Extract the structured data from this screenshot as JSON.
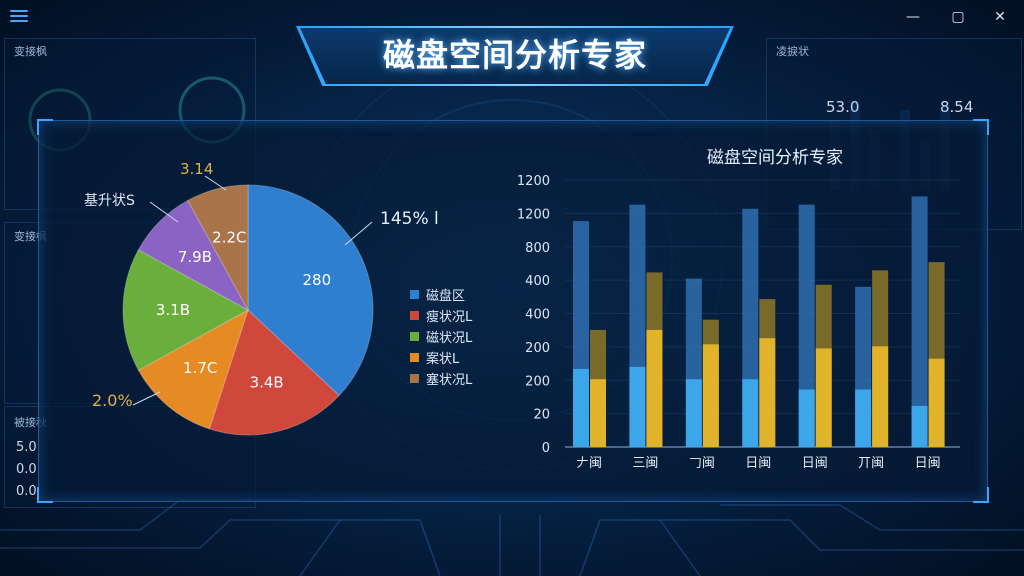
{
  "window": {
    "title": "磁盘空间分析专家",
    "minimize_glyph": "—",
    "maximize_glyph": "▢",
    "close_glyph": "✕"
  },
  "background_panels": {
    "left_top_label": "变接枫",
    "left_mid_label": "变接枫",
    "left_bot_label": "被接秋",
    "right_top_label": "凌捩状",
    "right_values": [
      "53.0",
      "8.54"
    ],
    "left_values": [
      "5.0",
      "0.0",
      "0.0"
    ]
  },
  "pie_chart": {
    "callouts": {
      "top": "3.14",
      "left": "基升状S",
      "right": "145% l",
      "bottom_left": "2.0%"
    },
    "slice_labels": [
      "280",
      "3.4B",
      "1.7C",
      "3.1B",
      "7.9B",
      "2.2C"
    ],
    "legend": [
      "磁盘区",
      "瘦状况L",
      "磁状况L",
      "案状L",
      "塞状况L"
    ]
  },
  "bar_chart_title": "磁盘空间分析专家",
  "colors": {
    "accent": "#3aa4ff",
    "pie": [
      "#2f7fd0",
      "#d0473c",
      "#e68a24",
      "#6aae3c",
      "#8a63c4",
      "#a9744a"
    ],
    "bar_blue": "#2f6fb0",
    "bar_blue_light": "#3ca6ea",
    "bar_gold": "#e0b32a",
    "bar_gold_dark": "#7a6a2a"
  },
  "chart_data": [
    {
      "type": "pie",
      "values": [
        37,
        18,
        12,
        16,
        9,
        8
      ],
      "labels": [
        "280",
        "3.4B",
        "1.7C",
        "3.1B",
        "7.9B",
        "2.2C"
      ],
      "legend": [
        "磁盘区",
        "瘦状况L",
        "磁状况L",
        "案状L",
        "塞状况L"
      ]
    },
    {
      "type": "bar",
      "title": "磁盘空间分析专家",
      "categories": [
        "𠂇闽",
        "三闽",
        "𠃌闽",
        "日闽",
        "日闽",
        "丌闽",
        "日闽"
      ],
      "y_ticks": [
        "1200",
        "1200",
        "800",
        "400",
        "400",
        "200",
        "200",
        "20",
        "0"
      ],
      "series": [
        {
          "values": [
            1100,
            1180,
            820,
            1160,
            1180,
            780,
            1220
          ],
          "stack": "blue"
        },
        {
          "values": [
            380,
            390,
            330,
            330,
            280,
            280,
            200
          ],
          "stack": "blue-light"
        },
        {
          "values": [
            570,
            850,
            620,
            720,
            790,
            860,
            900
          ],
          "stack": "gold-dark"
        },
        {
          "values": [
            330,
            570,
            500,
            530,
            480,
            490,
            430
          ],
          "stack": "gold"
        }
      ],
      "ylim": [
        0,
        1300
      ]
    }
  ]
}
